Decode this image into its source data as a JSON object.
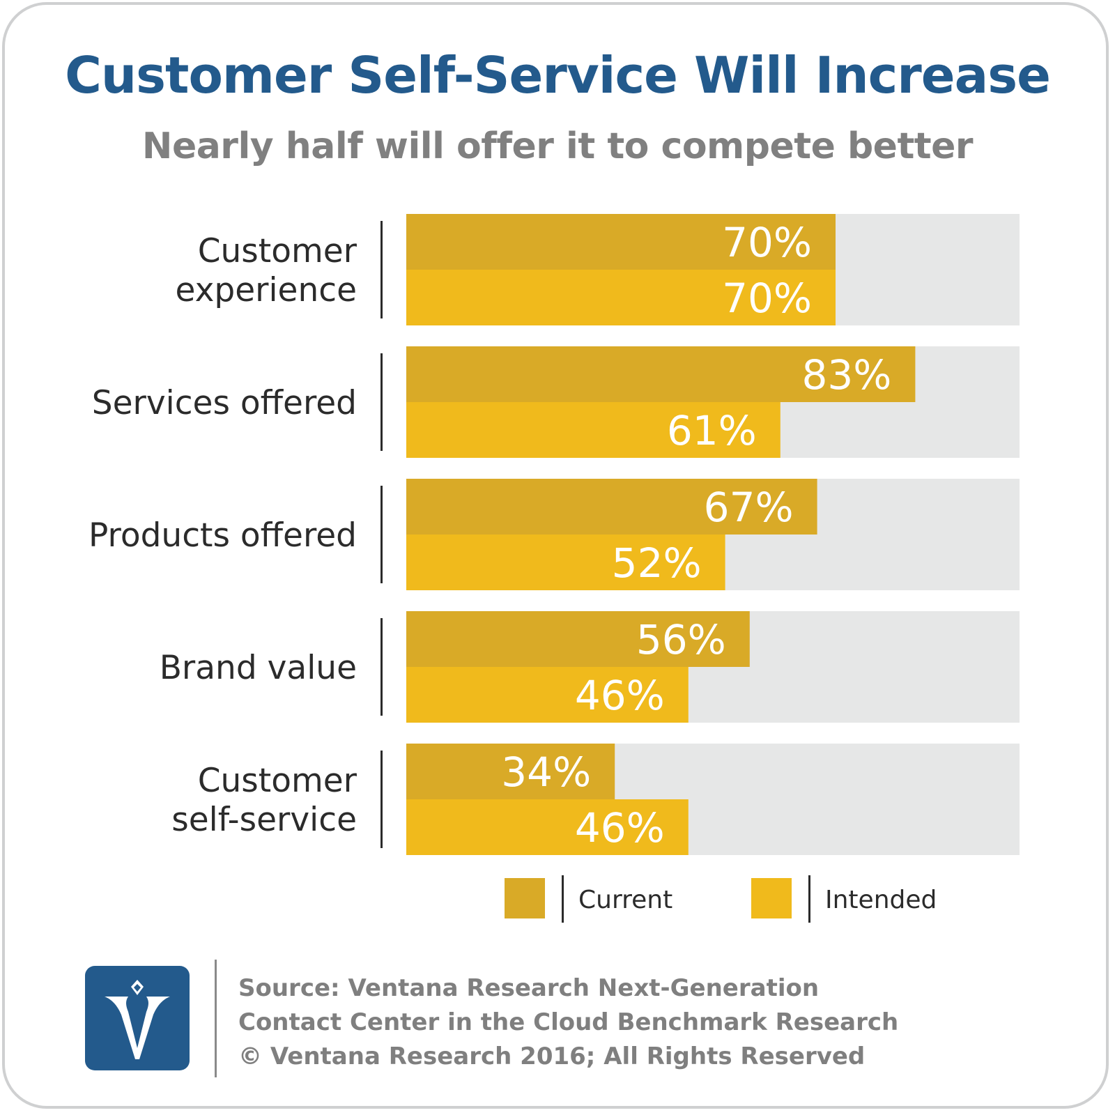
{
  "title": "Customer Self-Service Will Increase",
  "subtitle": "Nearly half will offer it to compete better",
  "colors": {
    "title": "#235a8c",
    "subtitle": "#808080",
    "current": "#d9aa27",
    "intended": "#f0ba1c",
    "track": "#e6e7e7",
    "logo": "#235a8c"
  },
  "chart_data": {
    "type": "bar",
    "orientation": "horizontal",
    "title": "Customer Self-Service Will Increase",
    "subtitle": "Nearly half will offer it to compete better",
    "categories": [
      [
        "Customer",
        "experience"
      ],
      [
        "Services offered"
      ],
      [
        "Products offered"
      ],
      [
        "Brand value"
      ],
      [
        "Customer",
        "self-service"
      ]
    ],
    "series": [
      {
        "name": "Current",
        "values": [
          70,
          83,
          67,
          56,
          34
        ]
      },
      {
        "name": "Intended",
        "values": [
          70,
          61,
          52,
          46,
          46
        ]
      }
    ],
    "value_suffix": "%",
    "xlim": [
      0,
      100
    ],
    "legend_position": "bottom"
  },
  "legend": {
    "current": "Current",
    "intended": "Intended"
  },
  "footer": {
    "line1": "Source: Ventana Research Next-Generation",
    "line2": "Contact Center in the Cloud Benchmark Research",
    "line3": "© Ventana Research 2016; All Rights Reserved"
  },
  "logo_icon": "ventana-v-logo-icon"
}
